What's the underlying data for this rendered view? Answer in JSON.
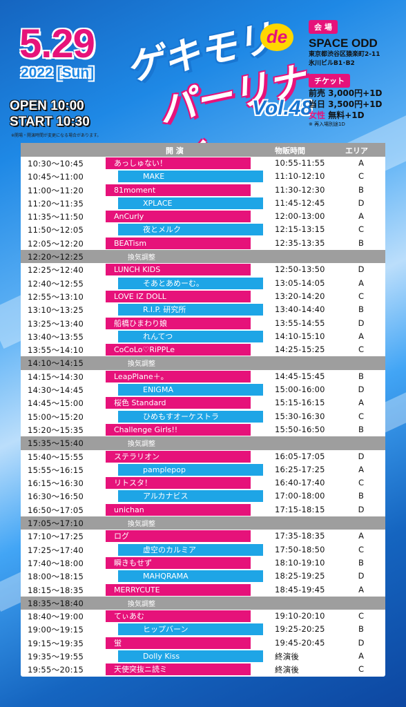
{
  "header": {
    "date": "5.29",
    "year": "2022 [Sun]",
    "open": "OPEN 10:00",
    "start": "START 10:30",
    "open_note": "※開場・開演時間が変更になる場合があります。",
    "logo_line1": "ゲキモリ",
    "logo_de": "de",
    "logo_line2": "パーリナイ",
    "logo_vol": "Vol.48"
  },
  "venue": {
    "tag": "会 場",
    "name": "SPACE ODD",
    "addr1": "東京都渋谷区猿楽町2-11",
    "addr2": "氷川ビルB1･B2"
  },
  "ticket": {
    "tag": "チケット",
    "advance": "前売 3,000円+1D",
    "door": "当日 3,500円+1D",
    "women_label": "女性",
    "women_price": "無料+1D",
    "note": "※ 再入場別途1D"
  },
  "table": {
    "col_perf": "開 演",
    "col_merch": "物販時間",
    "col_area": "エリア",
    "rows": [
      {
        "t": "10:30～10:45",
        "n": "あっしゅない！",
        "c": "pink",
        "m": "10:55-11:55",
        "a": "A"
      },
      {
        "t": "10:45～11:00",
        "n": "MAKE",
        "c": "blue",
        "m": "11:10-12:10",
        "a": "C"
      },
      {
        "t": "11:00～11:20",
        "n": "81moment",
        "c": "pink",
        "m": "11:30-12:30",
        "a": "B"
      },
      {
        "t": "11:20～11:35",
        "n": "XPLACE",
        "c": "blue",
        "m": "11:45-12:45",
        "a": "D"
      },
      {
        "t": "11:35～11:50",
        "n": "AnCurly",
        "c": "pink",
        "m": "12:00-13:00",
        "a": "A"
      },
      {
        "t": "11:50～12:05",
        "n": "夜とメルク",
        "c": "blue",
        "m": "12:15-13:15",
        "a": "C"
      },
      {
        "t": "12:05～12:20",
        "n": "BEATism",
        "c": "pink",
        "m": "12:35-13:35",
        "a": "B"
      },
      {
        "t": "12:20～12:25",
        "n": "換気調整",
        "c": "break",
        "m": "",
        "a": ""
      },
      {
        "t": "12:25～12:40",
        "n": "LUNCH KIDS",
        "c": "pink",
        "m": "12:50-13:50",
        "a": "D"
      },
      {
        "t": "12:40～12:55",
        "n": "そあとあめーむ。",
        "c": "blue",
        "m": "13:05-14:05",
        "a": "A"
      },
      {
        "t": "12:55～13:10",
        "n": "LOVE IZ DOLL",
        "c": "pink",
        "m": "13:20-14:20",
        "a": "C"
      },
      {
        "t": "13:10～13:25",
        "n": "R.I.P. 研究所",
        "c": "blue",
        "m": "13:40-14:40",
        "a": "B"
      },
      {
        "t": "13:25～13:40",
        "n": "船橋ひまわり娘",
        "c": "pink",
        "m": "13:55-14:55",
        "a": "D"
      },
      {
        "t": "13:40～13:55",
        "n": "れんてつ",
        "c": "blue",
        "m": "14:10-15:10",
        "a": "A"
      },
      {
        "t": "13:55～14:10",
        "n": "CoCoLo♡RiPPLe",
        "c": "pink",
        "m": "14:25-15:25",
        "a": "C"
      },
      {
        "t": "14:10～14:15",
        "n": "換気調整",
        "c": "break",
        "m": "",
        "a": ""
      },
      {
        "t": "14:15～14:30",
        "n": "LeapPlane＋。",
        "c": "pink",
        "m": "14:45-15:45",
        "a": "B"
      },
      {
        "t": "14:30～14:45",
        "n": "ENIGMA",
        "c": "blue",
        "m": "15:00-16:00",
        "a": "D"
      },
      {
        "t": "14:45～15:00",
        "n": "桜色 Standard",
        "c": "pink",
        "m": "15:15-16:15",
        "a": "A"
      },
      {
        "t": "15:00～15:20",
        "n": "ひめもすオーケストラ",
        "c": "blue",
        "m": "15:30-16:30",
        "a": "C"
      },
      {
        "t": "15:20～15:35",
        "n": "Challenge Girls!!",
        "c": "pink",
        "m": "15:50-16:50",
        "a": "B"
      },
      {
        "t": "15:35～15:40",
        "n": "換気調整",
        "c": "break",
        "m": "",
        "a": ""
      },
      {
        "t": "15:40～15:55",
        "n": "ステラリオン",
        "c": "pink",
        "m": "16:05-17:05",
        "a": "D"
      },
      {
        "t": "15:55～16:15",
        "n": "pamplepop",
        "c": "blue",
        "m": "16:25-17:25",
        "a": "A"
      },
      {
        "t": "16:15～16:30",
        "n": "リトスタ！",
        "c": "pink",
        "m": "16:40-17:40",
        "a": "C"
      },
      {
        "t": "16:30～16:50",
        "n": "アルカナビス",
        "c": "blue",
        "m": "17:00-18:00",
        "a": "B"
      },
      {
        "t": "16:50～17:05",
        "n": "unichan",
        "c": "pink",
        "m": "17:15-18:15",
        "a": "D"
      },
      {
        "t": "17:05～17:10",
        "n": "換気調整",
        "c": "break",
        "m": "",
        "a": ""
      },
      {
        "t": "17:10～17:25",
        "n": "ログ",
        "c": "pink",
        "m": "17:35-18:35",
        "a": "A"
      },
      {
        "t": "17:25～17:40",
        "n": "虚空のカルミア",
        "c": "blue",
        "m": "17:50-18:50",
        "a": "C"
      },
      {
        "t": "17:40～18:00",
        "n": "瞬きもせず",
        "c": "pink",
        "m": "18:10-19:10",
        "a": "B"
      },
      {
        "t": "18:00～18:15",
        "n": "MAHQRAMA",
        "c": "blue",
        "m": "18:25-19:25",
        "a": "D"
      },
      {
        "t": "18:15～18:35",
        "n": "MERRYCUTE",
        "c": "pink",
        "m": "18:45-19:45",
        "a": "A"
      },
      {
        "t": "18:35～18:40",
        "n": "換気調整",
        "c": "break",
        "m": "",
        "a": ""
      },
      {
        "t": "18:40～19:00",
        "n": "てぃあむ",
        "c": "pink",
        "m": "19:10-20:10",
        "a": "C"
      },
      {
        "t": "19:00～19:15",
        "n": "ヒップバーン",
        "c": "blue",
        "m": "19:25-20:25",
        "a": "B"
      },
      {
        "t": "19:15～19:35",
        "n": "蛍",
        "c": "pink",
        "m": "19:45-20:45",
        "a": "D"
      },
      {
        "t": "19:35～19:55",
        "n": "Dolly Kiss",
        "c": "blue",
        "m": "終演後",
        "a": "A"
      },
      {
        "t": "19:55～20:15",
        "n": "天使突抜ニ読ミ",
        "c": "pink",
        "m": "終演後",
        "a": "C"
      }
    ]
  }
}
